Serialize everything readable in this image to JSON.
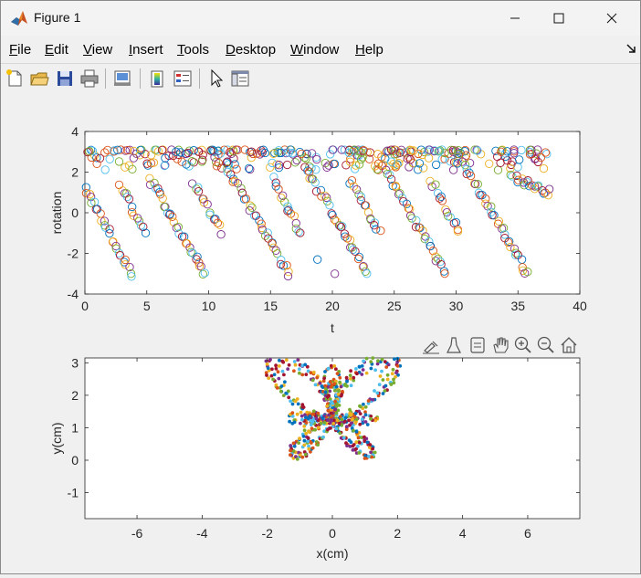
{
  "window": {
    "title": "Figure 1",
    "app_icon": "matlab-icon"
  },
  "menu": {
    "items": [
      {
        "label": "File",
        "key": "F",
        "rest": "ile"
      },
      {
        "label": "Edit",
        "key": "E",
        "rest": "dit"
      },
      {
        "label": "View",
        "key": "V",
        "rest": "iew"
      },
      {
        "label": "Insert",
        "key": "I",
        "rest": "nsert"
      },
      {
        "label": "Tools",
        "key": "T",
        "rest": "ools"
      },
      {
        "label": "Desktop",
        "key": "D",
        "rest": "esktop"
      },
      {
        "label": "Window",
        "key": "W",
        "rest": "indow"
      },
      {
        "label": "Help",
        "key": "H",
        "rest": "elp"
      }
    ],
    "dock_icon": "dock-arrow-icon"
  },
  "toolbar": {
    "icons": [
      "new-figure-icon",
      "open-file-icon",
      "save-icon",
      "print-icon",
      "link-plot-icon",
      "insert-colorbar-icon",
      "insert-legend-icon",
      "edit-plot-icon",
      "property-inspector-icon"
    ]
  },
  "axes_toolbar": {
    "icons": [
      "brush-data-icon",
      "data-cursor-icon",
      "export-icon",
      "pan-icon",
      "zoom-in-icon",
      "zoom-out-icon",
      "home-icon"
    ]
  },
  "colors": [
    "#0072BD",
    "#D95319",
    "#EDB120",
    "#7E2F8E",
    "#77AC30",
    "#4DBEEE",
    "#A2142F"
  ],
  "chart_data": [
    {
      "type": "scatter",
      "title": "",
      "xlabel": "t",
      "ylabel": "rotation",
      "xlim": [
        0,
        40
      ],
      "ylim": [
        -4,
        4
      ],
      "xticks": [
        0,
        5,
        10,
        15,
        20,
        25,
        30,
        35,
        40
      ],
      "yticks": [
        -4,
        -2,
        0,
        2,
        4
      ],
      "marker": "open-circle",
      "x_range_of_data": [
        0,
        37.5
      ],
      "segments": [
        {
          "t_start": 0.0,
          "t_end": 3.8,
          "y_start": 1.2,
          "y_end": -3.1
        },
        {
          "t_start": 2.8,
          "t_end": 4.8,
          "y_start": 1.4,
          "y_end": -0.9
        },
        {
          "t_start": 5.2,
          "t_end": 9.8,
          "y_start": 1.7,
          "y_end": -3.1
        },
        {
          "t_start": 8.8,
          "t_end": 11.0,
          "y_start": 1.5,
          "y_end": -0.9
        },
        {
          "t_start": 11.5,
          "t_end": 16.5,
          "y_start": 2.3,
          "y_end": -3.0
        },
        {
          "t_start": 15.2,
          "t_end": 17.5,
          "y_start": 1.6,
          "y_end": -1.0
        },
        {
          "t_start": 17.8,
          "t_end": 22.8,
          "y_start": 2.3,
          "y_end": -3.0
        },
        {
          "t_start": 21.5,
          "t_end": 23.8,
          "y_start": 1.6,
          "y_end": -1.0
        },
        {
          "t_start": 24.0,
          "t_end": 29.2,
          "y_start": 2.4,
          "y_end": -3.0
        },
        {
          "t_start": 28.0,
          "t_end": 30.2,
          "y_start": 1.6,
          "y_end": -1.0
        },
        {
          "t_start": 30.5,
          "t_end": 35.8,
          "y_start": 2.5,
          "y_end": -3.0
        },
        {
          "t_start": 34.5,
          "t_end": 37.5,
          "y_start": 1.8,
          "y_end": 1.0
        }
      ],
      "top_band": {
        "y_min": 2.1,
        "y_max": 3.1
      },
      "isolated_points": [
        {
          "x": 18.8,
          "y": -2.3
        },
        {
          "x": 20.2,
          "y": -3.0
        },
        {
          "x": 20.7,
          "y": -0.7
        }
      ]
    },
    {
      "type": "scatter",
      "title": "",
      "xlabel": "x(cm)",
      "ylabel": "y(cm)",
      "xlim": [
        -7.6,
        7.6
      ],
      "ylim": [
        -1.8,
        3.15
      ],
      "xticks": [
        -6,
        -4,
        -2,
        0,
        2,
        4,
        6
      ],
      "yticks": [
        -1,
        0,
        1,
        2,
        3
      ],
      "marker": "filled-dot",
      "shape": "butterfly"
    }
  ]
}
